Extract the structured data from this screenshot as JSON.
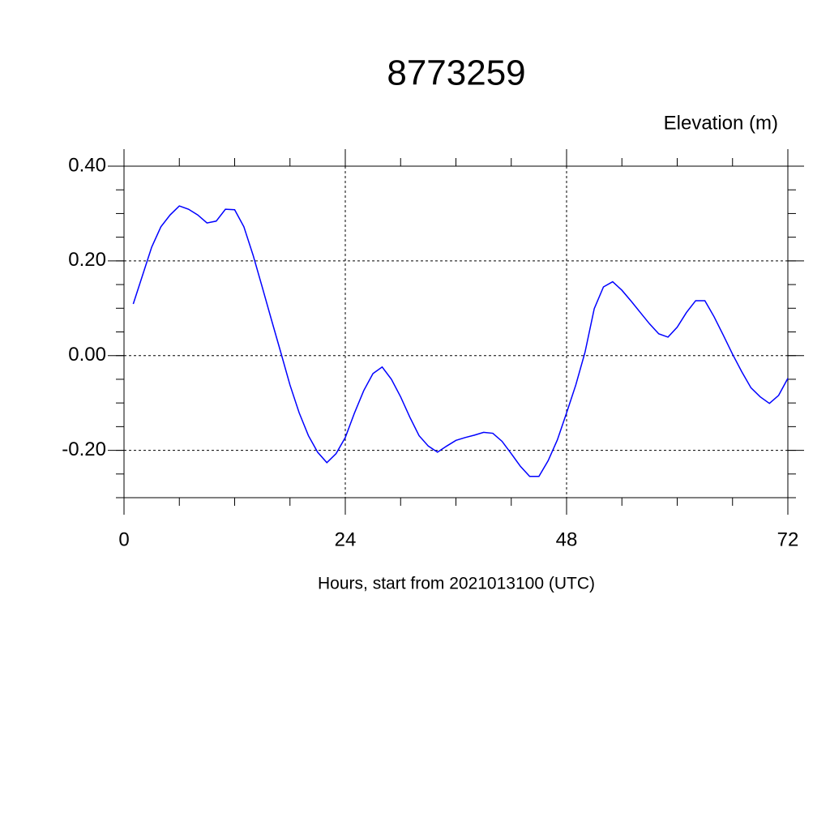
{
  "chart_data": {
    "type": "line",
    "title": "8773259",
    "ylabel": "Elevation (m)",
    "xlabel": "Hours, start from 2021013100 (UTC)",
    "x": [
      1,
      2,
      3,
      4,
      5,
      6,
      7,
      8,
      9,
      10,
      11,
      12,
      13,
      14,
      15,
      16,
      17,
      18,
      19,
      20,
      21,
      22,
      23,
      24,
      25,
      26,
      27,
      28,
      29,
      30,
      31,
      32,
      33,
      34,
      35,
      36,
      37,
      38,
      39,
      40,
      41,
      42,
      43,
      44,
      45,
      46,
      47,
      48,
      49,
      50,
      51,
      52,
      53,
      54,
      55,
      56,
      57,
      58,
      59,
      60,
      61,
      62,
      63,
      64,
      65,
      66,
      67,
      68,
      69,
      70,
      71,
      72
    ],
    "series": [
      {
        "color": "#0000ff",
        "values": [
          0.109,
          0.169,
          0.229,
          0.272,
          0.297,
          0.316,
          0.309,
          0.297,
          0.28,
          0.284,
          0.309,
          0.308,
          0.272,
          0.212,
          0.144,
          0.075,
          0.007,
          -0.062,
          -0.121,
          -0.169,
          -0.204,
          -0.226,
          -0.207,
          -0.173,
          -0.121,
          -0.074,
          -0.038,
          -0.024,
          -0.05,
          -0.087,
          -0.13,
          -0.169,
          -0.191,
          -0.204,
          -0.191,
          -0.179,
          -0.173,
          -0.168,
          -0.162,
          -0.164,
          -0.181,
          -0.207,
          -0.234,
          -0.255,
          -0.255,
          -0.222,
          -0.178,
          -0.121,
          -0.062,
          0.007,
          0.099,
          0.145,
          0.156,
          0.138,
          0.115,
          0.091,
          0.067,
          0.046,
          0.039,
          0.06,
          0.091,
          0.116,
          0.116,
          0.082,
          0.043,
          0.003,
          -0.034,
          -0.068,
          -0.087,
          -0.101,
          -0.084,
          -0.048
        ]
      }
    ],
    "xlim": [
      0,
      72
    ],
    "xticks": [
      0,
      24,
      48,
      72
    ],
    "ylim": [
      -0.3,
      0.4
    ],
    "yticks": [
      {
        "value": -0.2,
        "label": "-0.20"
      },
      {
        "value": 0,
        "label": "0.00"
      },
      {
        "value": 0.2,
        "label": "0.20"
      },
      {
        "value": 0.4,
        "label": "0.40"
      }
    ],
    "grid": true
  }
}
